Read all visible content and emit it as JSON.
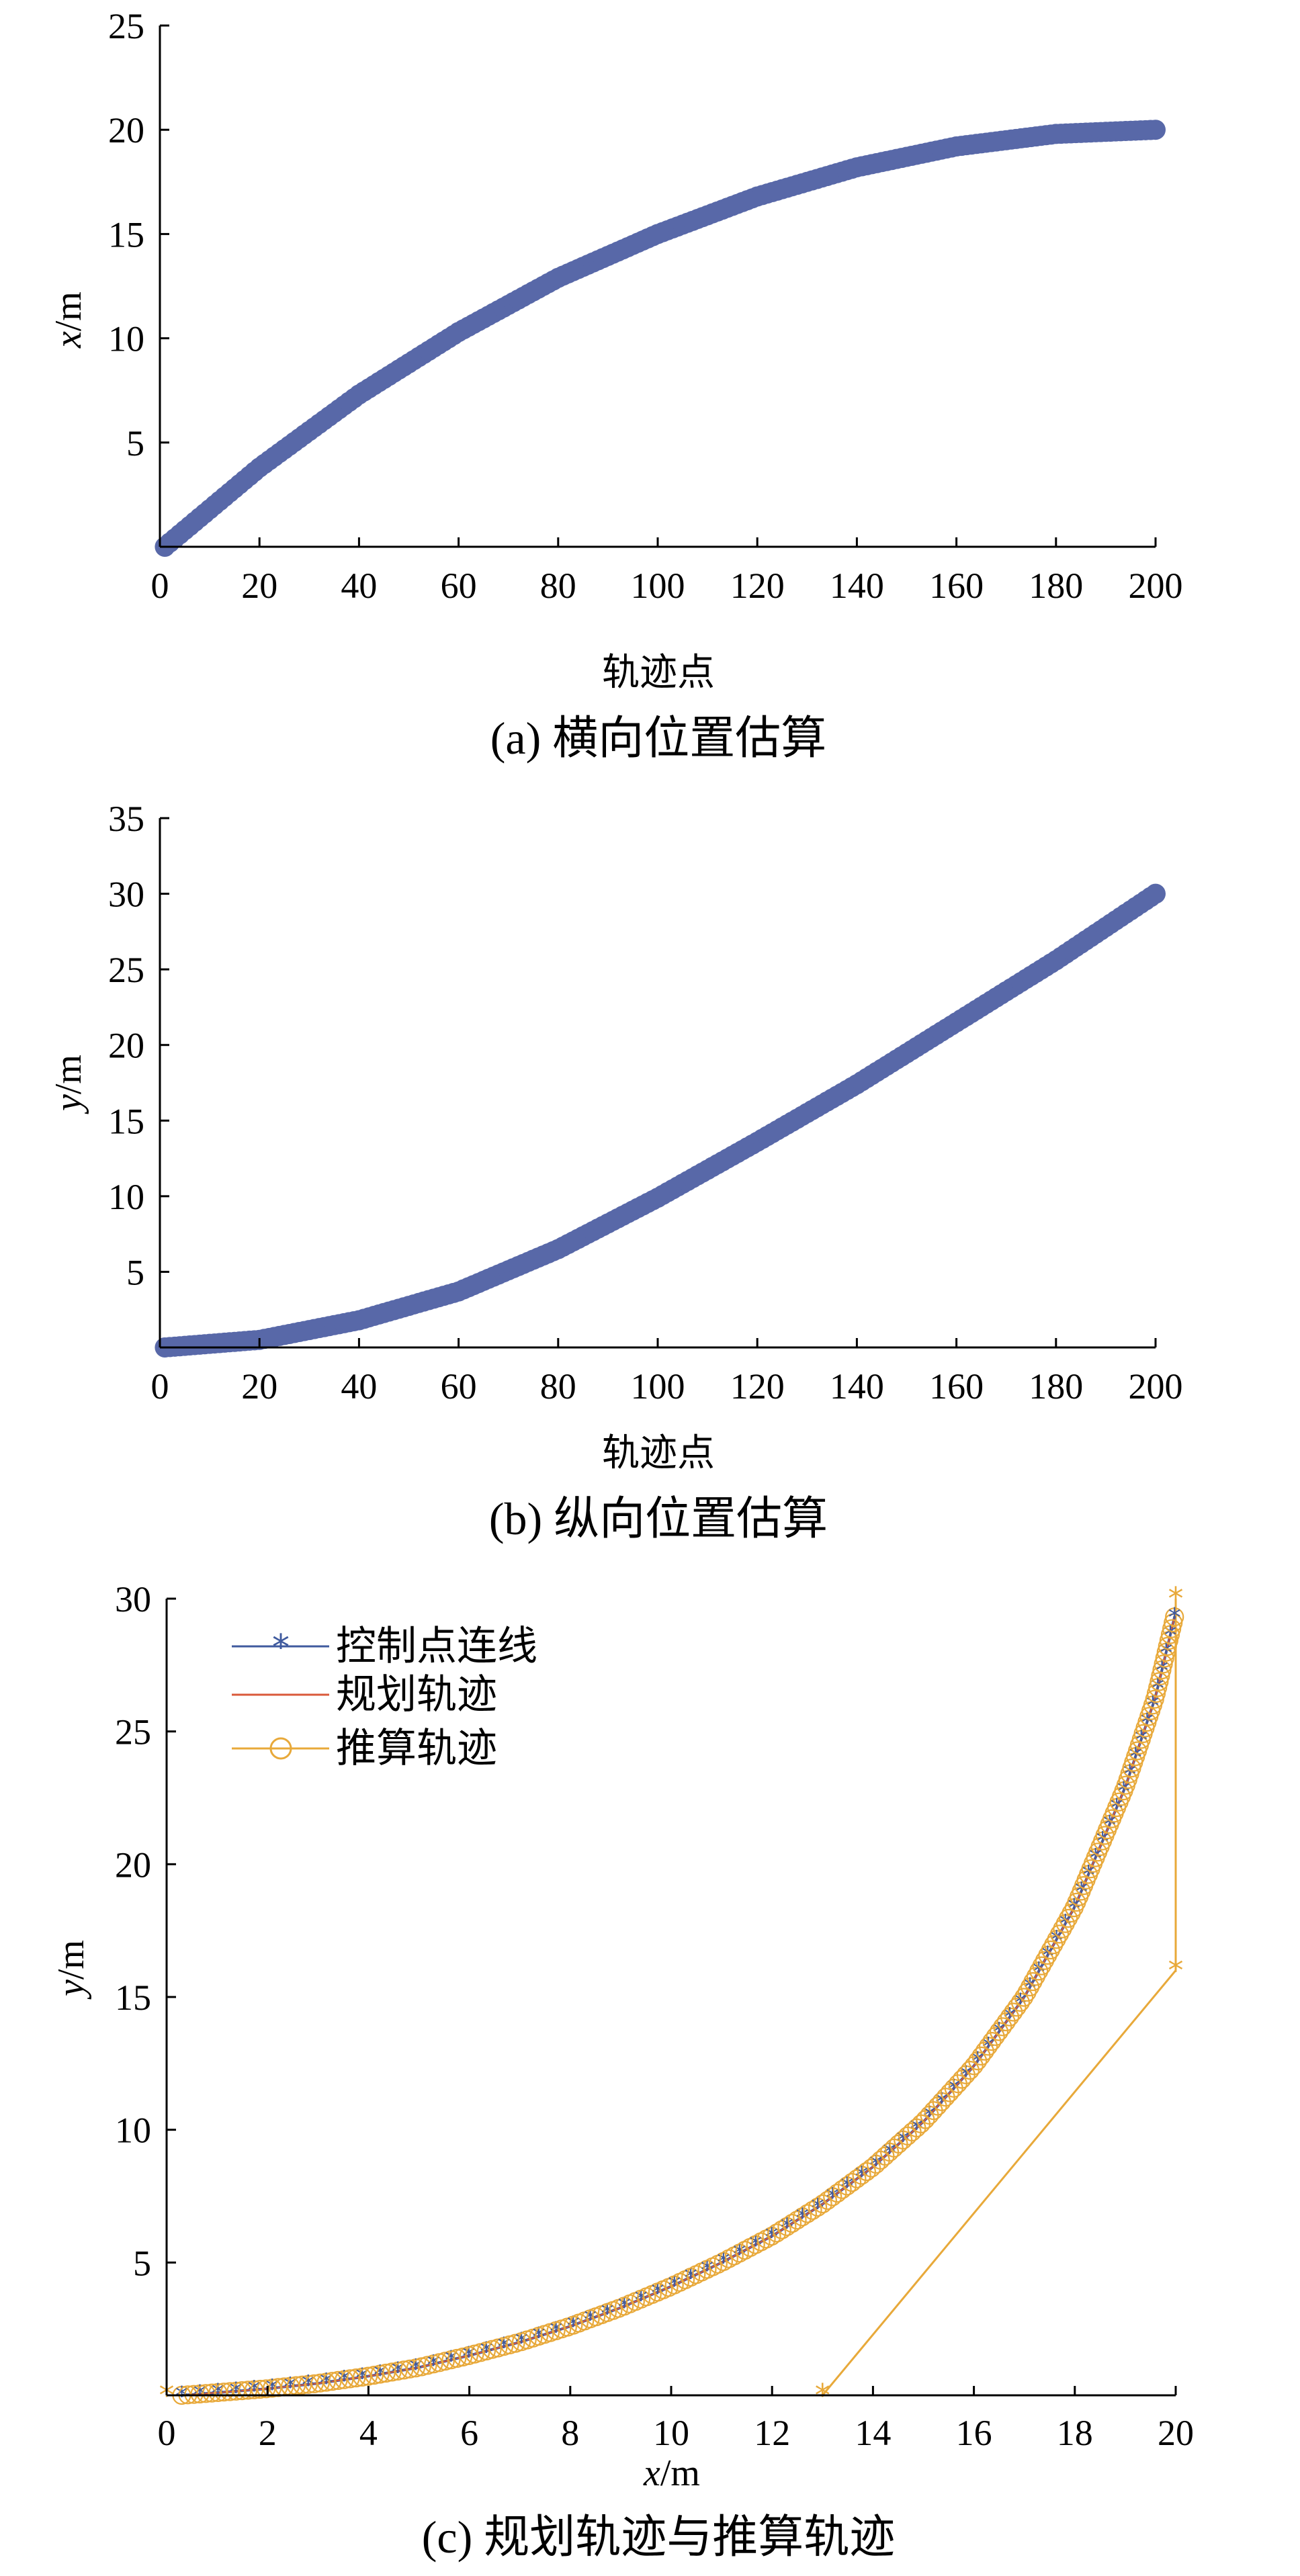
{
  "chart_data": [
    {
      "type": "scatter",
      "caption": "(a)  横向位置估算",
      "xlabel": "轨迹点",
      "ylabel_var": "x",
      "ylabel_unit": "/m",
      "xlim": [
        0,
        200
      ],
      "ylim": [
        0,
        25
      ],
      "xticks": [
        "0",
        "20",
        "40",
        "60",
        "80",
        "100",
        "120",
        "140",
        "160",
        "180",
        "200"
      ],
      "yticks": [
        "5",
        "10",
        "15",
        "20",
        "25"
      ],
      "grid": false,
      "color": "#5868a8",
      "x_range": [
        1,
        200
      ],
      "x": [
        1,
        20,
        40,
        60,
        80,
        100,
        120,
        140,
        160,
        180,
        200
      ],
      "y": [
        0.0,
        3.8,
        7.3,
        10.3,
        12.9,
        15.0,
        16.8,
        18.2,
        19.2,
        19.8,
        20.0
      ]
    },
    {
      "type": "scatter",
      "caption": "(b)  纵向位置估算",
      "xlabel": "轨迹点",
      "ylabel_var": "y",
      "ylabel_unit": "/m",
      "xlim": [
        0,
        200
      ],
      "ylim": [
        0,
        35
      ],
      "xticks": [
        "0",
        "20",
        "40",
        "60",
        "80",
        "100",
        "120",
        "140",
        "160",
        "180",
        "200"
      ],
      "yticks": [
        "5",
        "10",
        "15",
        "20",
        "25",
        "30",
        "35"
      ],
      "grid": false,
      "color": "#5868a8",
      "x_range": [
        1,
        200
      ],
      "x": [
        1,
        20,
        40,
        60,
        80,
        100,
        120,
        140,
        160,
        180,
        200
      ],
      "y": [
        0.0,
        0.5,
        1.8,
        3.7,
        6.5,
        9.9,
        13.6,
        17.4,
        21.5,
        25.6,
        30.0
      ]
    },
    {
      "type": "line",
      "caption": "(c)  规划轨迹与推算轨迹",
      "xlabel_var": "x",
      "xlabel_unit": "/m",
      "ylabel_var": "y",
      "ylabel_unit": "/m",
      "xlim": [
        0,
        20
      ],
      "ylim": [
        0,
        30
      ],
      "xticks": [
        "0",
        "2",
        "4",
        "6",
        "8",
        "10",
        "12",
        "14",
        "16",
        "18",
        "20"
      ],
      "yticks": [
        "5",
        "10",
        "15",
        "20",
        "25",
        "30"
      ],
      "grid": false,
      "legend_position": "top-left",
      "series": [
        {
          "name": "控制点连线",
          "color": "#3f5a9e",
          "marker": "asterisk",
          "x": [
            0.3,
            1,
            2,
            3,
            4,
            5,
            6,
            7,
            8,
            9,
            10,
            11,
            12,
            13,
            14,
            15,
            16,
            17,
            18,
            19,
            19.6,
            20
          ],
          "y": [
            0,
            0.1,
            0.25,
            0.45,
            0.72,
            1.05,
            1.5,
            2.0,
            2.6,
            3.3,
            4.1,
            5.0,
            6.0,
            7.2,
            8.6,
            10.3,
            12.4,
            15.0,
            18.4,
            22.9,
            26.3,
            29.5
          ]
        },
        {
          "name": "规划轨迹",
          "color": "#d9593a",
          "marker": "none",
          "x": [
            0.3,
            1,
            2,
            3,
            4,
            5,
            6,
            7,
            8,
            9,
            10,
            11,
            12,
            13,
            14,
            15,
            16,
            17,
            18,
            19,
            19.6,
            20
          ],
          "y": [
            0,
            0.1,
            0.25,
            0.45,
            0.72,
            1.05,
            1.5,
            2.0,
            2.6,
            3.3,
            4.1,
            5.0,
            6.0,
            7.2,
            8.6,
            10.3,
            12.4,
            15.0,
            18.4,
            22.9,
            26.3,
            29.5
          ]
        },
        {
          "name": "推算轨迹",
          "color": "#e8a93a",
          "marker": "circle",
          "x": [
            0.3,
            1,
            2,
            3,
            4,
            5,
            6,
            7,
            8,
            9,
            10,
            11,
            12,
            13,
            14,
            15,
            16,
            17,
            18,
            19,
            19.6,
            20
          ],
          "y": [
            0,
            0.1,
            0.25,
            0.45,
            0.72,
            1.05,
            1.5,
            2.0,
            2.6,
            3.3,
            4.1,
            5.0,
            6.0,
            7.2,
            8.6,
            10.3,
            12.4,
            15.0,
            18.4,
            22.9,
            26.3,
            29.5
          ]
        },
        {
          "name": "",
          "color": "#e8a93a",
          "marker": "asterisk",
          "x": [
            0,
            13,
            20,
            20
          ],
          "y": [
            0,
            0,
            16,
            30
          ]
        }
      ]
    }
  ]
}
